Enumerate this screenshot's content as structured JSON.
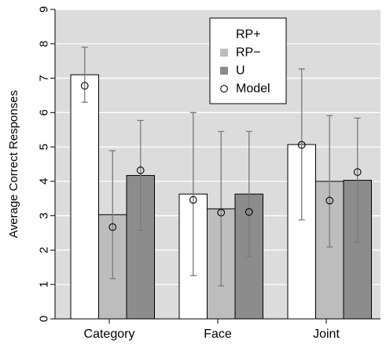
{
  "chart_data": {
    "type": "bar",
    "title": "",
    "xlabel": "",
    "ylabel": "Average Correct Responses",
    "ylim": [
      0,
      9
    ],
    "yticks": [
      "0",
      "1",
      "2",
      "3",
      "4",
      "5",
      "6",
      "7",
      "8",
      "9"
    ],
    "grid": true,
    "categories": [
      "Category",
      "Face",
      "Joint"
    ],
    "legend": {
      "placement": "top-center"
    },
    "series": [
      {
        "name": "RP+",
        "color": "#ffffff",
        "values": [
          7.1,
          3.63,
          5.07
        ],
        "err_low": [
          6.3,
          1.26,
          2.88
        ],
        "err_high": [
          7.9,
          6.0,
          7.27
        ]
      },
      {
        "name": "RP−",
        "color": "#bdbdbd",
        "values": [
          3.03,
          3.2,
          4.0
        ],
        "err_low": [
          1.17,
          0.96,
          2.09
        ],
        "err_high": [
          4.89,
          5.45,
          5.91
        ]
      },
      {
        "name": "U",
        "color": "#8c8c8c",
        "values": [
          4.17,
          3.63,
          4.03
        ],
        "err_low": [
          2.57,
          1.81,
          2.22
        ],
        "err_high": [
          5.77,
          5.45,
          5.84
        ]
      }
    ],
    "model": {
      "name": "Model",
      "values": [
        [
          6.78,
          2.67,
          4.32
        ],
        [
          3.46,
          3.09,
          3.11
        ],
        [
          5.06,
          3.44,
          4.27
        ]
      ]
    },
    "colors": {
      "background": "#dcdcdc",
      "grid": "#ffffff",
      "error_bar": "#7a7a7a"
    }
  }
}
